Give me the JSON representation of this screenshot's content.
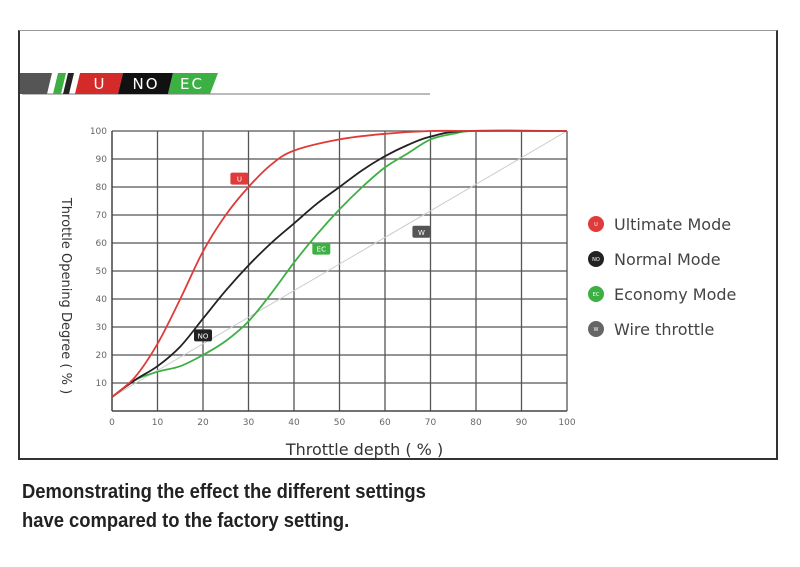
{
  "logo": {
    "segments": [
      "U",
      "NO",
      "EC"
    ]
  },
  "caption": {
    "line1": "Demonstrating the effect the different settings",
    "line2": "have compared to the factory setting."
  },
  "chart_data": {
    "type": "line",
    "title": "",
    "xlabel": "Throttle depth ( % )",
    "ylabel": "Throttle Opening Degree ( % )",
    "xlim": [
      0,
      100
    ],
    "ylim": [
      0,
      100
    ],
    "xticks": [
      0,
      10,
      20,
      30,
      40,
      50,
      60,
      70,
      80,
      90,
      100
    ],
    "yticks": [
      10,
      20,
      30,
      40,
      50,
      60,
      70,
      80,
      90,
      100
    ],
    "grid": true,
    "legend_position": "right",
    "series": [
      {
        "name": "Ultimate Mode",
        "tag": "U",
        "color": "#e03a3a",
        "x": [
          0,
          5,
          10,
          15,
          20,
          25,
          30,
          35,
          40,
          50,
          60,
          70,
          80,
          100
        ],
        "y": [
          5,
          12,
          24,
          40,
          57,
          70,
          80,
          88,
          93,
          97,
          99,
          100,
          100,
          100
        ],
        "label_at": [
          28,
          83
        ]
      },
      {
        "name": "Normal Mode",
        "tag": "NO",
        "color": "#222222",
        "x": [
          0,
          5,
          10,
          15,
          20,
          25,
          30,
          35,
          40,
          45,
          50,
          55,
          60,
          65,
          70,
          78,
          100
        ],
        "y": [
          5,
          11,
          16,
          23,
          33,
          43,
          52,
          60,
          67,
          74,
          80,
          86,
          91,
          95,
          98,
          100,
          100
        ],
        "label_at": [
          20,
          27
        ]
      },
      {
        "name": "Economy Mode",
        "tag": "EC",
        "color": "#3cb043",
        "x": [
          0,
          5,
          10,
          15,
          20,
          25,
          30,
          35,
          40,
          45,
          50,
          55,
          60,
          65,
          70,
          75,
          80,
          100
        ],
        "y": [
          5,
          11,
          14,
          16,
          20,
          25,
          32,
          42,
          53,
          63,
          72,
          80,
          87,
          92,
          97,
          99,
          100,
          100
        ],
        "label_at": [
          46,
          58
        ]
      },
      {
        "name": "Wire throttle",
        "tag": "W",
        "color": "#cccccc",
        "x": [
          0,
          100
        ],
        "y": [
          5,
          100
        ],
        "label_at": [
          68,
          64
        ]
      }
    ]
  }
}
